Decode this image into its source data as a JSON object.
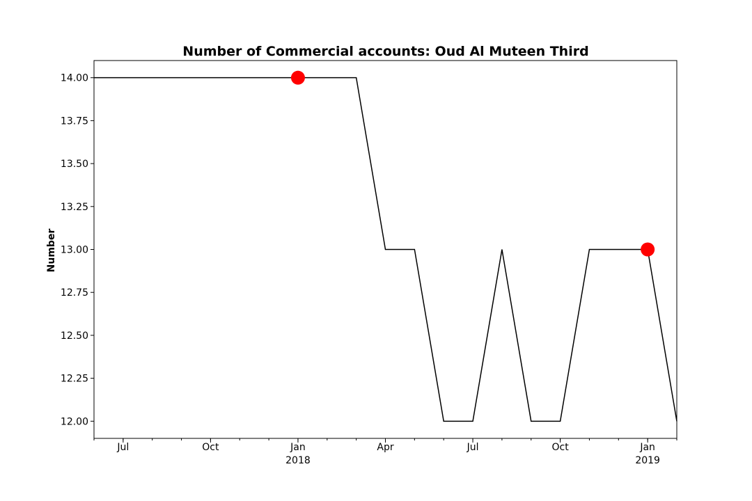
{
  "chart_data": {
    "type": "line",
    "title": "Number of Commercial accounts: Oud Al Muteen Third",
    "xlabel": "",
    "ylabel": "Number",
    "x": [
      "2017-06",
      "2017-07",
      "2017-08",
      "2017-09",
      "2017-10",
      "2017-11",
      "2017-12",
      "2018-01",
      "2018-02",
      "2018-03",
      "2018-04",
      "2018-05",
      "2018-06",
      "2018-07",
      "2018-08",
      "2018-09",
      "2018-10",
      "2018-11",
      "2018-12",
      "2019-01",
      "2019-02"
    ],
    "series": [
      {
        "values": [
          14,
          14,
          14,
          14,
          14,
          14,
          14,
          14,
          14,
          14,
          13,
          13,
          12,
          12,
          13,
          12,
          12,
          13,
          13,
          13,
          12
        ],
        "color": "#000000"
      }
    ],
    "highlights": [
      {
        "x": "2018-01",
        "y": 14,
        "color": "#ff0000"
      },
      {
        "x": "2019-01",
        "y": 13,
        "color": "#ff0000"
      }
    ],
    "xlim": [
      "2017-06",
      "2019-02"
    ],
    "ylim": [
      11.9,
      14.1
    ],
    "yticks": [
      12.0,
      12.25,
      12.5,
      12.75,
      13.0,
      13.25,
      13.5,
      13.75,
      14.0
    ],
    "ytick_labels": [
      "12.00",
      "12.25",
      "12.50",
      "12.75",
      "13.00",
      "13.25",
      "13.50",
      "13.75",
      "14.00"
    ],
    "xticks_major": [
      {
        "x": "2017-07",
        "label": "Jul",
        "year": ""
      },
      {
        "x": "2017-10",
        "label": "Oct",
        "year": ""
      },
      {
        "x": "2018-01",
        "label": "Jan",
        "year": "2018"
      },
      {
        "x": "2018-04",
        "label": "Apr",
        "year": ""
      },
      {
        "x": "2018-07",
        "label": "Jul",
        "year": ""
      },
      {
        "x": "2018-10",
        "label": "Oct",
        "year": ""
      },
      {
        "x": "2019-01",
        "label": "Jan",
        "year": "2019"
      }
    ],
    "grid": false,
    "legend": "none"
  }
}
